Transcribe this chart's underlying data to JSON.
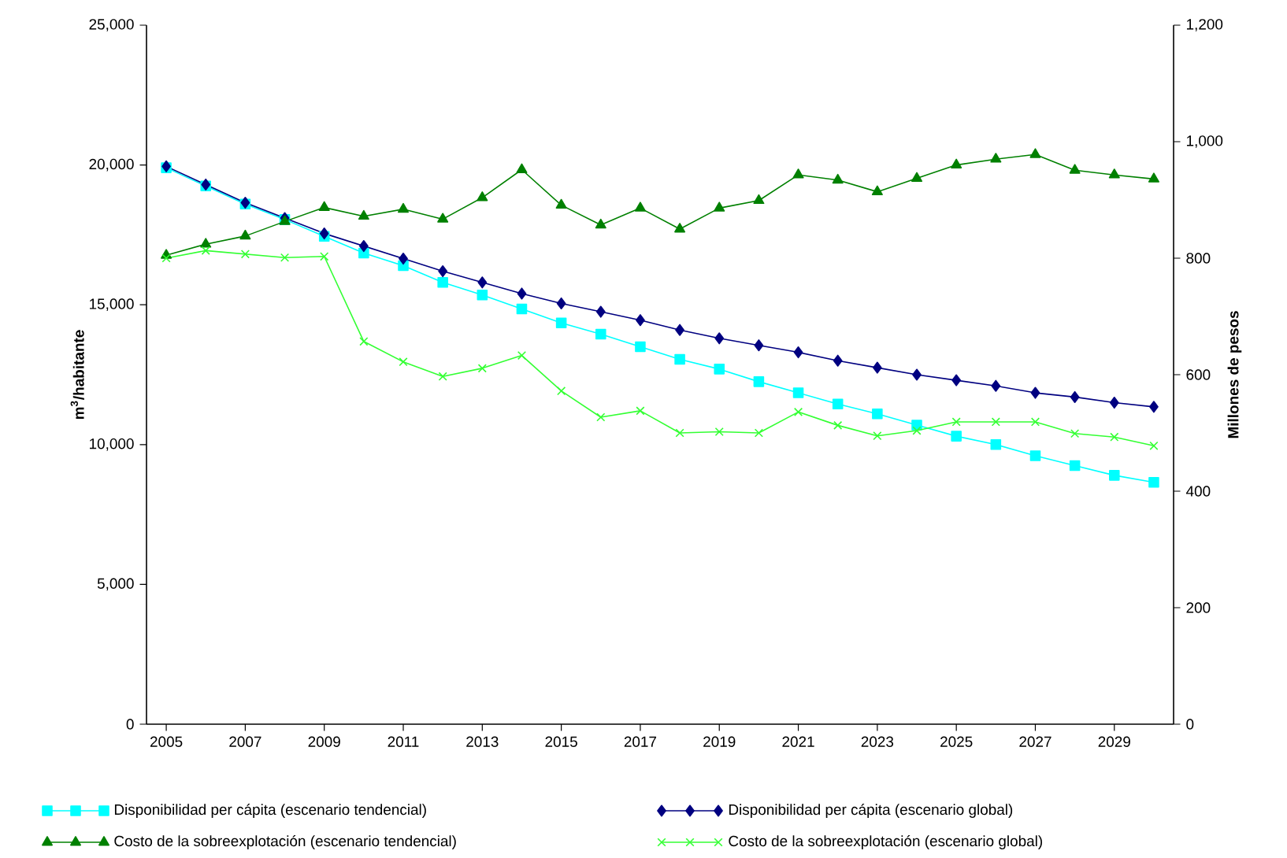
{
  "chart_data": {
    "type": "line",
    "ylabel": "m$^{3}$/habitante",
    "y2label": "Millones de pesos",
    "x": [
      2005,
      2006,
      2007,
      2008,
      2009,
      2010,
      2011,
      2012,
      2013,
      2014,
      2015,
      2016,
      2017,
      2018,
      2019,
      2020,
      2021,
      2022,
      2023,
      2024,
      2025,
      2026,
      2027,
      2028,
      2029,
      2030
    ],
    "series": [
      {
        "name": "Disponibilidad per cápita (escenario tendencial)",
        "color": "#00ffff",
        "marker": "square",
        "values": [
          19900,
          19250,
          18600,
          18050,
          17450,
          16850,
          16400,
          15800,
          15350,
          14850,
          14350,
          13950,
          13500,
          13050,
          12700,
          12250,
          11850,
          11450,
          11100,
          10700,
          10300,
          10000,
          9600,
          9250,
          8900,
          8650
        ]
      },
      {
        "name": "Disponibilidad per cápita (escenario global)",
        "color": "#000080",
        "marker": "diamond",
        "values": [
          19950,
          19300,
          18650,
          18100,
          17550,
          17100,
          16650,
          16200,
          15800,
          15400,
          15050,
          14750,
          14450,
          14100,
          13800,
          13550,
          13300,
          13000,
          12750,
          12500,
          12300,
          12100,
          11850,
          11700,
          11500,
          11350
        ]
      },
      {
        "name": "Costo de la sobreexplotación (escenario tendencial)",
        "color": "#008000",
        "marker": "triangle",
        "axis": "y2",
        "values": [
          805,
          824,
          838,
          863,
          887,
          872,
          884,
          867,
          904,
          952,
          891,
          857,
          886,
          850,
          886,
          899,
          943,
          934,
          914,
          937,
          960,
          970,
          978,
          951,
          943,
          936
        ]
      },
      {
        "name": "Costo de la sobreexplotación (escenario global)",
        "color": "#33ff33",
        "marker": "cross",
        "axis": "y2",
        "values": [
          800,
          813,
          807,
          801,
          803,
          657,
          622,
          597,
          611,
          633,
          572,
          527,
          538,
          500,
          502,
          500,
          536,
          513,
          495,
          504,
          519,
          519,
          519,
          499,
          493,
          478
        ]
      }
    ],
    "xlim": [
      2004.5,
      2030.5
    ],
    "xticks": [
      2005,
      2007,
      2009,
      2011,
      2013,
      2015,
      2017,
      2019,
      2021,
      2023,
      2025,
      2027,
      2029
    ],
    "ylim": [
      0,
      25000
    ],
    "yticks": [
      0,
      {
        "value": 5000,
        "label": "5,000"
      },
      {
        "value": 10000,
        "label": "10,000"
      },
      {
        "value": 15000,
        "label": "15,000"
      },
      {
        "value": 20000,
        "label": "20,000"
      },
      {
        "value": 25000,
        "label": "25,000"
      }
    ],
    "y2lim": [
      0,
      1200
    ],
    "y2ticks": [
      0,
      200,
      400,
      600,
      800,
      {
        "value": 1000,
        "label": "1,000"
      },
      {
        "value": 1200,
        "label": "1,200"
      }
    ],
    "legend": "bottom",
    "grid": false,
    "line_style": "solid"
  }
}
